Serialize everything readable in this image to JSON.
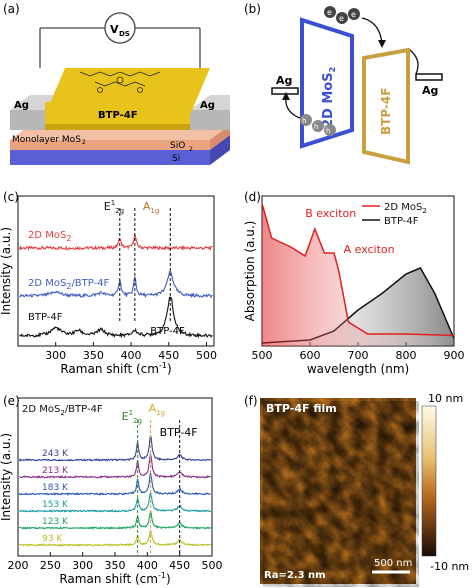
{
  "panels": {
    "a": {
      "label": "(a)",
      "vds": "V",
      "vds_sub": "DS",
      "ag_left": "Ag",
      "ag_right": "Ag",
      "btp": "BTP-4F",
      "monolayer": "Monolayer MoS",
      "monolayer_sub": "2",
      "sio2": "SiO",
      "sio2_sub": "2",
      "si": "Si",
      "colors": {
        "gold": "#e8c31c",
        "ag": "#b7b7b7",
        "si": "#5a5fd6",
        "sio2": "#e9a37f"
      }
    },
    "b": {
      "label": "(b)",
      "ag_left": "Ag",
      "ag_right": "Ag",
      "mos2": "2D MoS",
      "mos2_sub": "2",
      "btp": "BTP-4F",
      "electron": "e",
      "hole": "h",
      "hole_sup": "+",
      "colors": {
        "mos2": "#3a4fd1",
        "btp": "#c8a040"
      }
    },
    "c": {
      "label": "(c)",
      "xlabel": "Raman shift (cm",
      "xlabel_sup": "-1",
      "xlabel_tail": ")",
      "ylabel": "Intensity (a.u.)",
      "e2g": "E",
      "e2g_sup": "1",
      "e2g_sub": "2g",
      "a1g": "A",
      "a1g_sub": "1g",
      "traces": [
        {
          "name": "2D MoS",
          "sub": "2",
          "color": "#e04040"
        },
        {
          "name": "2D MoS",
          "sub": "2",
          "tail": "/BTP-4F",
          "color": "#3f5fbf"
        },
        {
          "name": "BTP-4F",
          "sub": "",
          "color": "#111111"
        }
      ],
      "btp_annot": "BTP-4F"
    },
    "d": {
      "label": "(d)",
      "xlabel": "wavelength (nm)",
      "ylabel": "Absorption (a.u.)",
      "b_exciton": "B exciton",
      "a_exciton": "A exciton",
      "legend": [
        {
          "name": "2D MoS",
          "sub": "2",
          "color": "#e02020"
        },
        {
          "name": "BTP-4F",
          "sub": "",
          "color": "#111111"
        }
      ]
    },
    "e": {
      "label": "(e)",
      "title": "2D MoS",
      "title_sub": "2",
      "title_tail": "/BTP-4F",
      "xlabel": "Raman shift (cm",
      "xlabel_sup": "-1",
      "xlabel_tail": ")",
      "ylabel": "Intensity (a.u.)",
      "e2g": "E",
      "e2g_sup": "1",
      "e2g_sub": "2g",
      "a1g": "A",
      "a1g_sub": "1g",
      "btp": "BTP-4F",
      "temps": [
        {
          "t": "243 K",
          "color": "#3a3f9a"
        },
        {
          "t": "213 K",
          "color": "#8a2a8a"
        },
        {
          "t": "183 K",
          "color": "#2a58b0"
        },
        {
          "t": "153 K",
          "color": "#1a9aa8"
        },
        {
          "t": "123 K",
          "color": "#1aa860"
        },
        {
          "t": "93 K",
          "color": "#b8c020"
        }
      ]
    },
    "f": {
      "label": "(f)",
      "title": "BTP-4F film",
      "ra": "Ra=2.3 nm",
      "scale": "500 nm",
      "cb_top": "10 nm",
      "cb_bottom": "-10 nm"
    }
  },
  "chart_data": [
    {
      "type": "line",
      "panel": "c",
      "xlabel": "Raman shift (cm-1)",
      "ylabel": "Intensity (a.u.)",
      "xlim": [
        250,
        510
      ],
      "xticks": [
        300,
        350,
        400,
        450,
        500
      ],
      "series": [
        {
          "name": "2D MoS2",
          "peaks": [
            385,
            405
          ]
        },
        {
          "name": "2D MoS2/BTP-4F",
          "peaks": [
            385,
            405,
            452
          ]
        },
        {
          "name": "BTP-4F",
          "peaks": [
            452
          ]
        }
      ]
    },
    {
      "type": "line",
      "panel": "d",
      "xlabel": "wavelength (nm)",
      "ylabel": "Absorption (a.u.)",
      "xlim": [
        500,
        900
      ],
      "xticks": [
        500,
        600,
        700,
        800,
        900
      ],
      "series": [
        {
          "name": "2D MoS2",
          "x": [
            500,
            520,
            560,
            590,
            610,
            630,
            650,
            660,
            680,
            720,
            800,
            900
          ],
          "y": [
            0.95,
            0.72,
            0.66,
            0.6,
            0.78,
            0.62,
            0.62,
            0.5,
            0.16,
            0.08,
            0.08,
            0.07
          ]
        },
        {
          "name": "BTP-4F",
          "x": [
            500,
            600,
            650,
            700,
            750,
            800,
            830,
            860,
            900
          ],
          "y": [
            0.02,
            0.04,
            0.1,
            0.24,
            0.35,
            0.48,
            0.52,
            0.35,
            0.05
          ]
        }
      ]
    },
    {
      "type": "line",
      "panel": "e",
      "xlabel": "Raman shift (cm-1)",
      "ylabel": "Intensity (a.u.)",
      "xlim": [
        200,
        500
      ],
      "xticks": [
        200,
        250,
        300,
        350,
        400,
        450,
        500
      ],
      "series": [
        {
          "name": "243 K",
          "peaks": [
            385,
            405,
            450
          ]
        },
        {
          "name": "213 K",
          "peaks": [
            385,
            405,
            450
          ]
        },
        {
          "name": "183 K",
          "peaks": [
            385,
            405,
            450
          ]
        },
        {
          "name": "153 K",
          "peaks": [
            385,
            405,
            450
          ]
        },
        {
          "name": "123 K",
          "peaks": [
            385,
            405,
            450
          ]
        },
        {
          "name": "93 K",
          "peaks": [
            385,
            405,
            450
          ]
        }
      ]
    }
  ]
}
